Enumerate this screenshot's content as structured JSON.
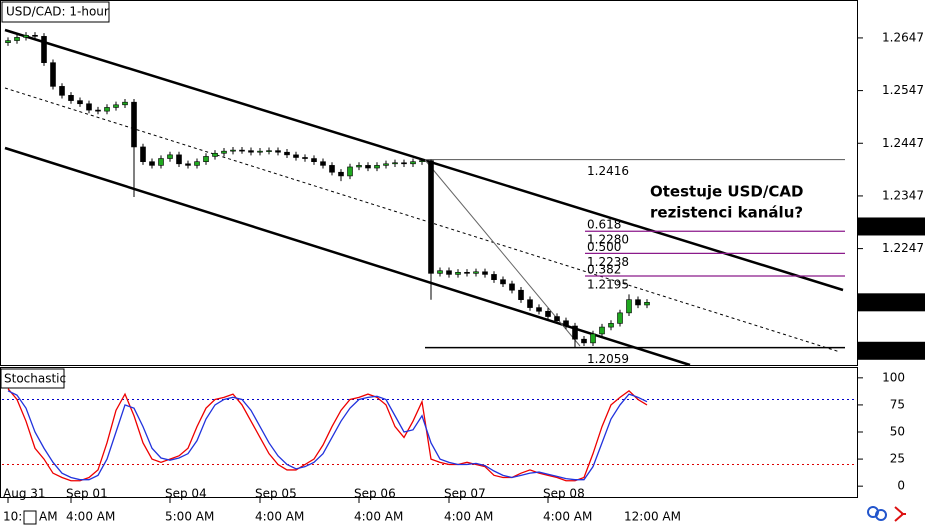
{
  "chart_data": {
    "type": "candlestick",
    "title": "USD/CAD: 1-hour",
    "categories": [
      "Aug 31",
      null,
      null,
      null,
      null,
      null,
      null,
      "Sep 01",
      null,
      null,
      null,
      null,
      null,
      null,
      null,
      null,
      null,
      null,
      "Sep 04",
      null,
      null,
      null,
      null,
      null,
      null,
      null,
      null,
      null,
      "Sep 05",
      null,
      null,
      null,
      null,
      null,
      null,
      null,
      null,
      null,
      null,
      "Sep 06",
      null,
      null,
      null,
      null,
      null,
      null,
      null,
      null,
      null,
      "Sep 07",
      null,
      null,
      null,
      null,
      null,
      null,
      null,
      null,
      null,
      null,
      "Sep 08",
      null,
      null,
      null,
      null,
      null,
      null,
      null,
      null,
      null,
      null,
      null
    ],
    "time_labels": [
      "10:",
      null,
      null,
      null,
      "AM",
      null,
      null,
      "4:00 AM",
      null,
      null,
      null,
      null,
      null,
      null,
      null,
      null,
      null,
      null,
      "5:00 AM",
      null,
      null,
      null,
      null,
      null,
      null,
      null,
      null,
      null,
      "4:00 AM",
      null,
      null,
      null,
      null,
      null,
      null,
      null,
      null,
      null,
      null,
      "4:00 AM",
      null,
      null,
      null,
      null,
      null,
      null,
      null,
      null,
      null,
      "4:00 AM",
      null,
      null,
      null,
      null,
      null,
      null,
      null,
      null,
      null,
      null,
      "4:00 AM",
      null,
      null,
      null,
      null,
      null,
      null,
      null,
      null,
      "12:00 AM",
      null,
      null
    ],
    "open": [
      1.2638,
      1.2642,
      1.2648,
      1.2652,
      1.265,
      1.26,
      1.2555,
      1.2538,
      1.2528,
      1.2522,
      1.251,
      1.2508,
      1.2515,
      1.252,
      1.2525,
      1.244,
      1.2412,
      1.2405,
      1.2418,
      1.2425,
      1.2408,
      1.2405,
      1.2412,
      1.2422,
      1.2428,
      1.2432,
      1.2434,
      1.2433,
      1.243,
      1.2432,
      1.2433,
      1.243,
      1.2425,
      1.242,
      1.2418,
      1.2412,
      1.2405,
      1.2392,
      1.2385,
      1.2402,
      1.2405,
      1.24,
      1.2405,
      1.2408,
      1.241,
      1.2408,
      1.2412,
      1.2414,
      1.22,
      1.2205,
      1.2198,
      1.2202,
      1.22,
      1.2203,
      1.2198,
      1.2188,
      1.218,
      1.2168,
      1.215,
      1.2135,
      1.2128,
      1.2118,
      1.211,
      1.21,
      1.2075,
      1.2068,
      1.2085,
      1.2098,
      1.2105,
      1.2125,
      1.215,
      1.214
    ],
    "high": [
      1.2648,
      1.2654,
      1.2658,
      1.2658,
      1.2656,
      1.2606,
      1.2561,
      1.2544,
      1.2534,
      1.2528,
      1.2516,
      1.2521,
      1.2526,
      1.2531,
      1.2531,
      1.2446,
      1.2418,
      1.2424,
      1.2431,
      1.2431,
      1.2414,
      1.2418,
      1.2428,
      1.2434,
      1.2438,
      1.244,
      1.244,
      1.2439,
      1.2438,
      1.2439,
      1.2439,
      1.2436,
      1.2431,
      1.2426,
      1.2424,
      1.2418,
      1.2411,
      1.2398,
      1.2408,
      1.2411,
      1.2411,
      1.2411,
      1.2414,
      1.2416,
      1.2416,
      1.2418,
      1.2416,
      1.2416,
      1.2211,
      1.2211,
      1.2208,
      1.2208,
      1.2209,
      1.2209,
      1.2204,
      1.2194,
      1.2186,
      1.2174,
      1.2156,
      1.2141,
      1.2134,
      1.2124,
      1.2116,
      1.2106,
      1.2081,
      1.2091,
      1.2104,
      1.2111,
      1.2131,
      1.216,
      1.2156,
      1.2151
    ],
    "low": [
      1.2632,
      1.2636,
      1.2642,
      1.2644,
      1.2594,
      1.2549,
      1.2532,
      1.2522,
      1.2516,
      1.2504,
      1.2502,
      1.2502,
      1.2509,
      1.2514,
      1.2345,
      1.2406,
      1.2399,
      1.2399,
      1.2412,
      1.2402,
      1.2399,
      1.2399,
      1.2406,
      1.2416,
      1.2422,
      1.2426,
      1.2427,
      1.2424,
      1.2424,
      1.2426,
      1.2424,
      1.2419,
      1.2414,
      1.2412,
      1.2406,
      1.2399,
      1.2386,
      1.2375,
      1.2379,
      1.2396,
      1.2394,
      1.2394,
      1.2399,
      1.2402,
      1.2402,
      1.2402,
      1.2406,
      1.215,
      1.2194,
      1.2192,
      1.2192,
      1.2194,
      1.2194,
      1.2192,
      1.2182,
      1.2174,
      1.2162,
      1.2144,
      1.2129,
      1.2122,
      1.2112,
      1.2104,
      1.2094,
      1.2059,
      1.2062,
      1.2062,
      1.2079,
      1.2092,
      1.2099,
      1.2119,
      1.2134,
      1.2134
    ],
    "close": [
      1.2642,
      1.2648,
      1.2652,
      1.265,
      1.26,
      1.2555,
      1.2538,
      1.2528,
      1.2522,
      1.251,
      1.2508,
      1.2515,
      1.252,
      1.2525,
      1.244,
      1.2412,
      1.2405,
      1.2418,
      1.2425,
      1.2408,
      1.2405,
      1.2412,
      1.2422,
      1.2428,
      1.2432,
      1.2434,
      1.2433,
      1.243,
      1.2432,
      1.2433,
      1.243,
      1.2425,
      1.242,
      1.2418,
      1.2412,
      1.2405,
      1.2392,
      1.2385,
      1.2402,
      1.2405,
      1.24,
      1.2405,
      1.2408,
      1.241,
      1.2408,
      1.2412,
      1.2414,
      1.22,
      1.2205,
      1.2198,
      1.2202,
      1.22,
      1.2203,
      1.2198,
      1.2188,
      1.218,
      1.2168,
      1.215,
      1.2135,
      1.2128,
      1.2118,
      1.211,
      1.21,
      1.2075,
      1.2068,
      1.2085,
      1.2098,
      1.2105,
      1.2125,
      1.215,
      1.214,
      1.2145
    ],
    "up_color": "#1fa81f",
    "down_color": "#000000",
    "ylim": [
      1.2026,
      1.2719
    ],
    "yticks": [
      1.2647,
      1.2547,
      1.2447,
      1.2347,
      1.2247
    ],
    "price_markers": [
      1.2289,
      1.2145,
      1.2053
    ],
    "levels": [
      1.2416,
      1.2059
    ],
    "fib_levels": [
      {
        "ratio": 0.618,
        "price": {
          "value": 1.228,
          "label": "1.2280"
        }
      },
      {
        "ratio": {
          "value": 0.5,
          "label": "0.500"
        },
        "price": 1.2238
      },
      {
        "ratio": 0.382,
        "price": 1.2195
      }
    ],
    "fib_color": "#8b1a8b",
    "annotation": [
      "Otestuje USD/CAD",
      "rezistenci kanálu?"
    ],
    "indicator": {
      "title": "Stochastic",
      "ylim": [
        -10,
        110
      ],
      "yticks": [
        100,
        75,
        50,
        25,
        0
      ],
      "levels": [
        {
          "value": 80,
          "color": "#0000cc"
        },
        {
          "value": 20,
          "color": "#dd0000"
        }
      ],
      "series": [
        {
          "color": "#ee0000",
          "values": [
            90,
            80,
            60,
            35,
            25,
            12,
            8,
            5,
            5,
            8,
            15,
            40,
            70,
            85,
            65,
            40,
            25,
            22,
            25,
            28,
            35,
            55,
            72,
            80,
            82,
            85,
            75,
            60,
            45,
            30,
            20,
            15,
            15,
            20,
            25,
            38,
            55,
            70,
            80,
            82,
            85,
            82,
            75,
            55,
            45,
            60,
            78,
            25,
            22,
            20,
            20,
            22,
            20,
            18,
            10,
            8,
            8,
            12,
            15,
            12,
            10,
            8,
            5,
            5,
            8,
            30,
            55,
            75,
            82,
            88,
            80,
            75
          ]
        },
        {
          "color": "#2233dd",
          "values": [
            88,
            84,
            72,
            50,
            35,
            22,
            12,
            8,
            6,
            6,
            10,
            25,
            50,
            75,
            72,
            55,
            35,
            26,
            24,
            26,
            30,
            42,
            62,
            75,
            80,
            82,
            80,
            70,
            55,
            40,
            28,
            20,
            16,
            18,
            22,
            30,
            45,
            60,
            72,
            80,
            82,
            83,
            80,
            65,
            50,
            52,
            65,
            40,
            25,
            22,
            20,
            20,
            21,
            19,
            14,
            10,
            8,
            10,
            12,
            13,
            11,
            9,
            7,
            6,
            6,
            18,
            40,
            62,
            75,
            85,
            82,
            78
          ]
        }
      ]
    }
  }
}
